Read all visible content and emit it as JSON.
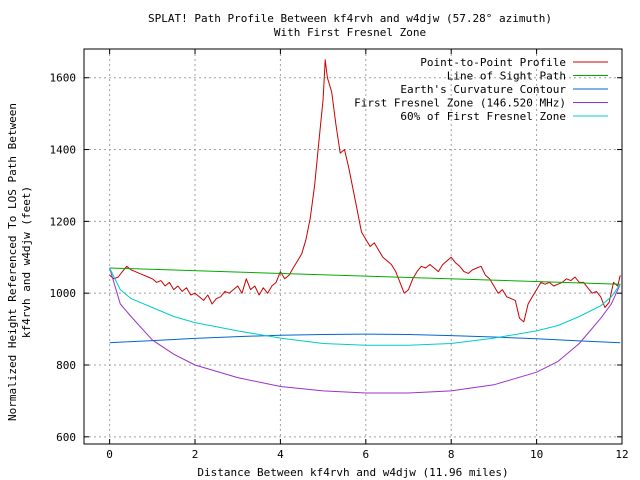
{
  "chart_data": {
    "type": "line",
    "title": "SPLAT! Path Profile Between kf4rvh and w4djw (57.28° azimuth)",
    "subtitle": "With First Fresnel Zone",
    "xlabel": "Distance Between kf4rvh and w4djw (11.96 miles)",
    "ylabel": [
      "Normalized Height Referenced To LOS Path Between",
      "kf4rvh and w4djw (feet)"
    ],
    "xlim": [
      -0.6,
      12
    ],
    "ylim": [
      580,
      1680
    ],
    "xticks": [
      0,
      2,
      4,
      6,
      8,
      10,
      12
    ],
    "yticks": [
      600,
      800,
      1000,
      1200,
      1400,
      1600
    ],
    "grid": true,
    "legend_position": "top-right",
    "series": [
      {
        "name": "Point-to-Point Profile",
        "color": "#cc0000",
        "x": [
          0,
          0.1,
          0.2,
          0.3,
          0.4,
          0.5,
          0.6,
          0.7,
          0.8,
          0.9,
          1.0,
          1.1,
          1.2,
          1.3,
          1.4,
          1.5,
          1.6,
          1.7,
          1.8,
          1.9,
          2.0,
          2.1,
          2.2,
          2.3,
          2.4,
          2.5,
          2.6,
          2.7,
          2.8,
          2.9,
          3.0,
          3.1,
          3.2,
          3.3,
          3.4,
          3.5,
          3.6,
          3.7,
          3.8,
          3.9,
          4.0,
          4.1,
          4.2,
          4.3,
          4.4,
          4.5,
          4.6,
          4.7,
          4.8,
          4.9,
          5.0,
          5.05,
          5.1,
          5.2,
          5.3,
          5.4,
          5.5,
          5.6,
          5.7,
          5.8,
          5.9,
          6.0,
          6.1,
          6.2,
          6.3,
          6.4,
          6.5,
          6.6,
          6.7,
          6.8,
          6.9,
          7.0,
          7.1,
          7.2,
          7.3,
          7.4,
          7.5,
          7.6,
          7.7,
          7.8,
          7.9,
          8.0,
          8.1,
          8.2,
          8.3,
          8.4,
          8.5,
          8.6,
          8.7,
          8.8,
          8.9,
          9.0,
          9.1,
          9.2,
          9.3,
          9.4,
          9.5,
          9.6,
          9.7,
          9.8,
          9.9,
          10.0,
          10.1,
          10.2,
          10.3,
          10.4,
          10.5,
          10.6,
          10.7,
          10.8,
          10.9,
          11.0,
          11.1,
          11.2,
          11.3,
          11.4,
          11.5,
          11.6,
          11.7,
          11.8,
          11.9,
          11.96
        ],
        "y": [
          1050,
          1040,
          1045,
          1060,
          1075,
          1065,
          1060,
          1055,
          1050,
          1045,
          1040,
          1030,
          1035,
          1020,
          1030,
          1010,
          1020,
          1005,
          1015,
          995,
          1000,
          990,
          980,
          995,
          970,
          985,
          990,
          1005,
          1000,
          1010,
          1020,
          1000,
          1040,
          1010,
          1020,
          995,
          1015,
          1000,
          1020,
          1030,
          1060,
          1040,
          1050,
          1070,
          1090,
          1110,
          1150,
          1210,
          1300,
          1420,
          1540,
          1650,
          1600,
          1560,
          1470,
          1390,
          1400,
          1350,
          1290,
          1230,
          1170,
          1150,
          1130,
          1140,
          1120,
          1100,
          1090,
          1080,
          1060,
          1030,
          1000,
          1010,
          1040,
          1060,
          1075,
          1070,
          1080,
          1070,
          1060,
          1080,
          1090,
          1100,
          1085,
          1075,
          1060,
          1055,
          1065,
          1070,
          1075,
          1050,
          1040,
          1020,
          1000,
          1010,
          990,
          985,
          980,
          930,
          920,
          970,
          990,
          1010,
          1030,
          1025,
          1030,
          1020,
          1025,
          1030,
          1040,
          1035,
          1045,
          1030,
          1030,
          1015,
          1000,
          1005,
          990,
          960,
          975,
          1030,
          1020,
          1050
        ]
      },
      {
        "name": "Line of Sight Path",
        "color": "#00aa00",
        "x": [
          0,
          11.96
        ],
        "y": [
          1070,
          1025
        ]
      },
      {
        "name": "Earth's Curvature Contour",
        "color": "#0066cc",
        "x": [
          0,
          1,
          2,
          3,
          4,
          5,
          6,
          7,
          8,
          9,
          10,
          11,
          11.96
        ],
        "y": [
          862,
          868,
          874,
          879,
          883,
          885,
          886,
          885,
          882,
          878,
          873,
          867,
          862
        ]
      },
      {
        "name": "First Fresnel Zone (146.520 MHz)",
        "color": "#9933cc",
        "x": [
          0,
          0.25,
          0.5,
          1,
          1.5,
          2,
          3,
          4,
          5,
          6,
          7,
          8,
          9,
          10,
          10.5,
          11,
          11.5,
          11.75,
          11.96
        ],
        "y": [
          1070,
          970,
          935,
          870,
          830,
          800,
          765,
          740,
          728,
          722,
          722,
          728,
          745,
          780,
          810,
          860,
          930,
          970,
          1025
        ]
      },
      {
        "name": "60% of First Fresnel Zone",
        "color": "#00cccc",
        "x": [
          0,
          0.25,
          0.5,
          1,
          1.5,
          2,
          3,
          4,
          5,
          6,
          7,
          8,
          9,
          10,
          10.5,
          11,
          11.5,
          11.75,
          11.96
        ],
        "y": [
          1070,
          1010,
          985,
          960,
          935,
          918,
          895,
          875,
          860,
          855,
          855,
          860,
          875,
          895,
          910,
          935,
          965,
          990,
          1025
        ]
      }
    ]
  }
}
